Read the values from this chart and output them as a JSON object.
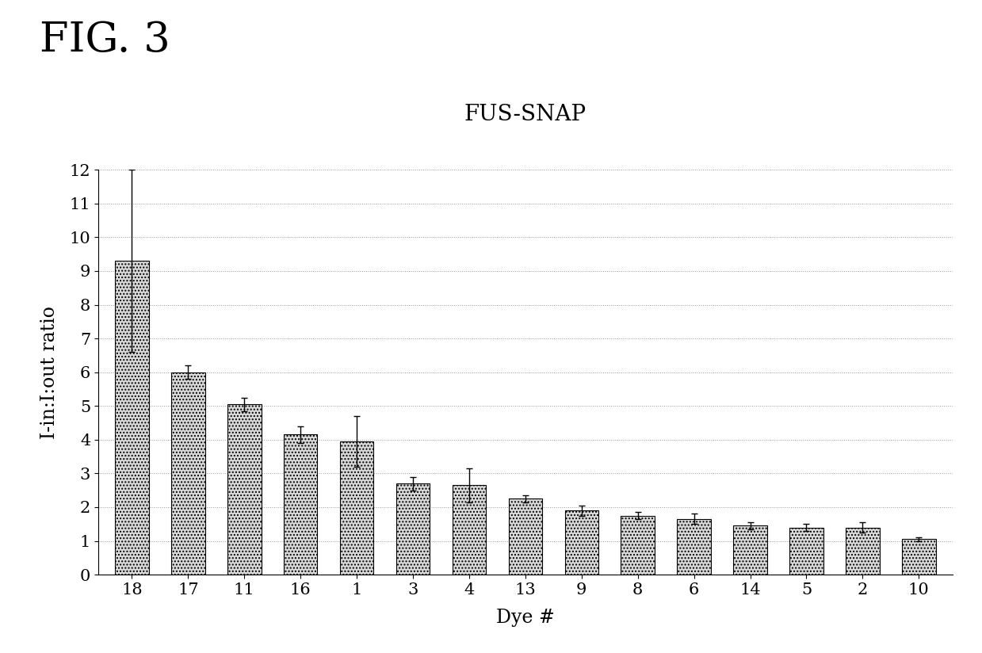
{
  "title": "FUS-SNAP",
  "fig_label": "FIG. 3",
  "xlabel": "Dye #",
  "ylabel": "I-in:I:out ratio",
  "categories": [
    "18",
    "17",
    "11",
    "16",
    "1",
    "3",
    "4",
    "13",
    "9",
    "8",
    "6",
    "14",
    "5",
    "2",
    "10"
  ],
  "values": [
    9.3,
    6.0,
    5.05,
    4.15,
    3.95,
    2.7,
    2.65,
    2.25,
    1.9,
    1.75,
    1.65,
    1.45,
    1.4,
    1.4,
    1.05
  ],
  "errors": [
    2.7,
    0.2,
    0.2,
    0.25,
    0.75,
    0.2,
    0.5,
    0.1,
    0.15,
    0.1,
    0.15,
    0.1,
    0.1,
    0.15,
    0.05
  ],
  "ylim": [
    0,
    12
  ],
  "yticks": [
    0,
    1,
    2,
    3,
    4,
    5,
    6,
    7,
    8,
    9,
    10,
    11,
    12
  ],
  "bar_color": "#d8d8d8",
  "bar_edgecolor": "#000000",
  "bar_hatch": "....",
  "bar_width": 0.6,
  "grid_color": "#999999",
  "grid_linestyle": "dotted",
  "title_fontsize": 20,
  "axis_label_fontsize": 17,
  "tick_fontsize": 15,
  "fig_label_fontsize": 38,
  "background_color": "#ffffff",
  "error_capsize": 3,
  "error_linewidth": 1.0,
  "error_color": "#000000"
}
